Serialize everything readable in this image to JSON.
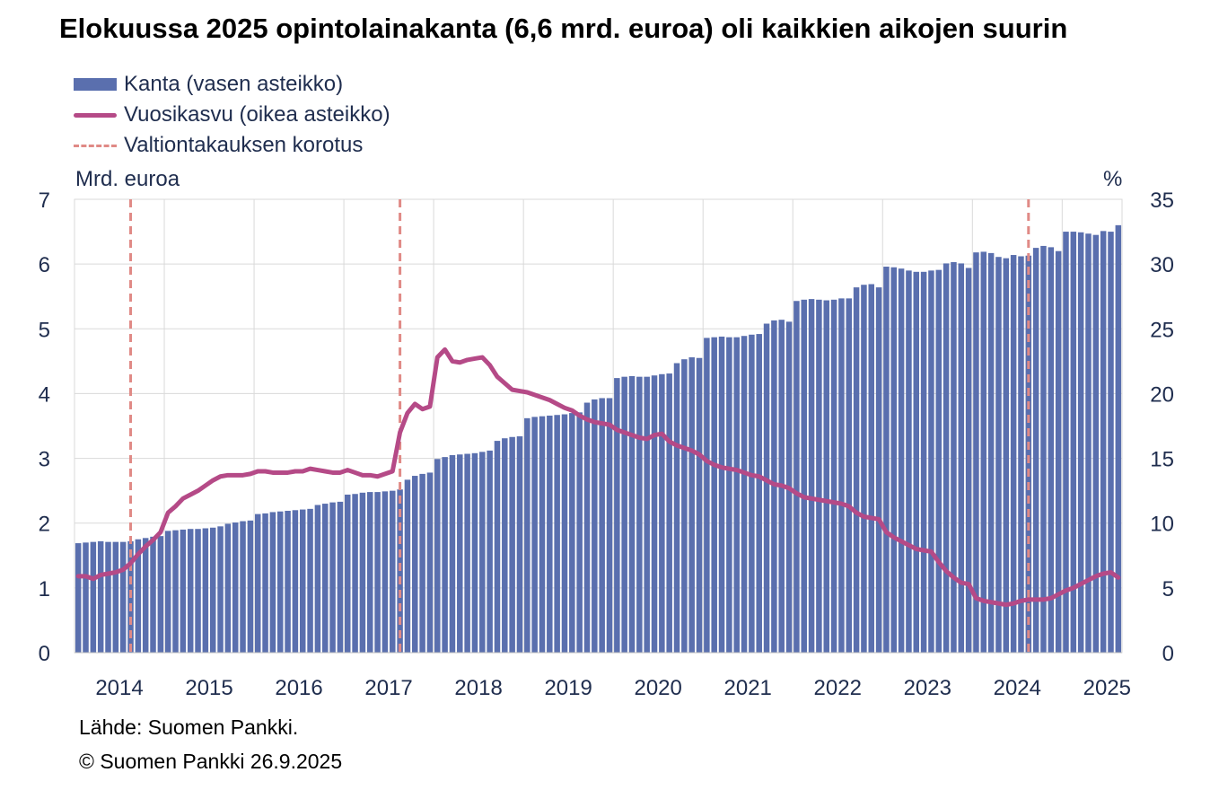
{
  "chart_data": {
    "type": "bar",
    "title": "Elokuussa 2025 opintolainakanta (6,6 mrd. euroa) oli kaikkien aikojen suurin",
    "legend": {
      "placement": "top-left",
      "bar_series": "Kanta (vasen asteikko)",
      "line_series": "Vuosikasvu (oikea asteikko)",
      "marker_series": "Valtiontakauksen korotus"
    },
    "ylabel_left": "Mrd. euroa",
    "ylabel_right": "%",
    "ylim_left": [
      0,
      7
    ],
    "ylim_right": [
      0,
      35
    ],
    "yticks_left": [
      "0",
      "1",
      "2",
      "3",
      "4",
      "5",
      "6",
      "7"
    ],
    "yticks_right": [
      "0",
      "5",
      "10",
      "15",
      "20",
      "25",
      "30",
      "35"
    ],
    "x_tick_labels": [
      "2014",
      "2015",
      "2016",
      "2017",
      "2018",
      "2019",
      "2020",
      "2021",
      "2022",
      "2023",
      "2024",
      "2025"
    ],
    "grid": "horizontal + yearly vertical",
    "x_start": "2014-01",
    "x_end": "2025-08",
    "series": [
      {
        "name": "Kanta (vasen asteikko)",
        "kind": "bar",
        "axis": "left",
        "color": "#5a6fae",
        "values": [
          1.69,
          1.7,
          1.71,
          1.72,
          1.71,
          1.71,
          1.71,
          1.72,
          1.75,
          1.77,
          1.79,
          1.8,
          1.88,
          1.89,
          1.9,
          1.91,
          1.91,
          1.92,
          1.93,
          1.95,
          1.99,
          2.01,
          2.03,
          2.04,
          2.14,
          2.15,
          2.17,
          2.18,
          2.19,
          2.2,
          2.21,
          2.22,
          2.28,
          2.3,
          2.32,
          2.33,
          2.44,
          2.45,
          2.47,
          2.48,
          2.48,
          2.49,
          2.5,
          2.52,
          2.67,
          2.73,
          2.76,
          2.78,
          2.99,
          3.02,
          3.05,
          3.06,
          3.07,
          3.08,
          3.1,
          3.12,
          3.27,
          3.31,
          3.33,
          3.34,
          3.62,
          3.64,
          3.65,
          3.66,
          3.67,
          3.68,
          3.7,
          3.71,
          3.86,
          3.91,
          3.93,
          3.93,
          4.24,
          4.26,
          4.27,
          4.26,
          4.26,
          4.28,
          4.3,
          4.31,
          4.47,
          4.53,
          4.56,
          4.55,
          4.86,
          4.87,
          4.88,
          4.87,
          4.87,
          4.89,
          4.91,
          4.92,
          5.08,
          5.13,
          5.14,
          5.11,
          5.43,
          5.45,
          5.46,
          5.45,
          5.44,
          5.45,
          5.47,
          5.47,
          5.64,
          5.68,
          5.69,
          5.64,
          5.96,
          5.95,
          5.93,
          5.9,
          5.88,
          5.88,
          5.9,
          5.91,
          6.01,
          6.03,
          6.01,
          5.94,
          6.18,
          6.19,
          6.17,
          6.11,
          6.09,
          6.14,
          6.12,
          6.13,
          6.25,
          6.28,
          6.26,
          6.2,
          6.5,
          6.5,
          6.49,
          6.47,
          6.45,
          6.51,
          6.5,
          6.6
        ]
      },
      {
        "name": "Vuosikasvu (oikea asteikko)",
        "kind": "line",
        "axis": "right",
        "color": "#b54a87",
        "values": [
          5.9,
          5.9,
          5.7,
          6.0,
          6.1,
          6.2,
          6.4,
          6.9,
          7.6,
          8.2,
          8.7,
          9.3,
          10.8,
          11.3,
          11.9,
          12.2,
          12.5,
          12.9,
          13.3,
          13.6,
          13.7,
          13.7,
          13.7,
          13.8,
          14.0,
          14.0,
          13.9,
          13.9,
          13.9,
          14.0,
          14.0,
          14.2,
          14.1,
          14.0,
          13.9,
          13.9,
          14.1,
          13.9,
          13.7,
          13.7,
          13.6,
          13.8,
          14.0,
          17.0,
          18.5,
          19.2,
          18.8,
          19.0,
          22.8,
          23.4,
          22.5,
          22.4,
          22.6,
          22.7,
          22.8,
          22.2,
          21.3,
          20.8,
          20.3,
          20.2,
          20.1,
          19.9,
          19.7,
          19.5,
          19.2,
          18.9,
          18.7,
          18.3,
          18.0,
          17.8,
          17.7,
          17.6,
          17.2,
          17.0,
          16.8,
          16.6,
          16.5,
          16.8,
          16.9,
          16.3,
          16.0,
          15.8,
          15.6,
          15.3,
          14.8,
          14.5,
          14.3,
          14.2,
          14.1,
          13.9,
          13.7,
          13.6,
          13.3,
          13.0,
          12.9,
          12.7,
          12.3,
          12.0,
          11.9,
          11.8,
          11.7,
          11.6,
          11.5,
          11.3,
          10.8,
          10.5,
          10.4,
          10.3,
          9.3,
          8.9,
          8.6,
          8.3,
          8.0,
          7.9,
          7.8,
          7.0,
          6.3,
          5.8,
          5.4,
          5.3,
          4.2,
          4.0,
          3.9,
          3.8,
          3.7,
          3.8,
          4.0,
          4.1,
          4.1,
          4.1,
          4.2,
          4.5,
          4.8,
          5.0,
          5.3,
          5.6,
          5.9,
          6.1,
          6.2,
          5.8
        ]
      }
    ],
    "markers": {
      "name": "Valtiontakauksen korotus",
      "color": "#e08a86",
      "dates": [
        "2014-08",
        "2017-08",
        "2024-08"
      ]
    }
  },
  "footer": {
    "source": "Lähde: Suomen Pankki.",
    "copyright": "© Suomen Pankki 26.9.2025"
  }
}
